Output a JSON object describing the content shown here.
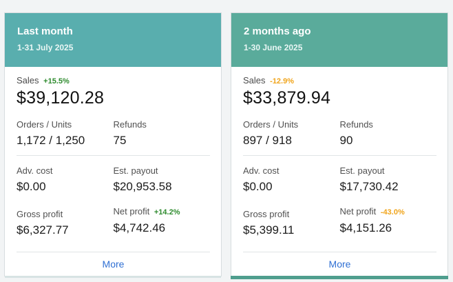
{
  "cards": [
    {
      "title": "Last month",
      "date_range": "1-31 July 2025",
      "sales_label": "Sales",
      "sales_change": "+15.5%",
      "sales_value": "$39,120.28",
      "orders_label": "Orders / Units",
      "orders_value": "1,172 / 1,250",
      "refunds_label": "Refunds",
      "refunds_value": "75",
      "adv_label": "Adv. cost",
      "adv_value": "$0.00",
      "payout_label": "Est. payout",
      "payout_value": "$20,953.58",
      "gross_label": "Gross profit",
      "gross_value": "$6,327.77",
      "net_label": "Net profit",
      "net_change": "+14.2%",
      "net_value": "$4,742.46",
      "more_label": "More"
    },
    {
      "title": "2 months ago",
      "date_range": "1-30 June 2025",
      "sales_label": "Sales",
      "sales_change": "-12.9%",
      "sales_value": "$33,879.94",
      "orders_label": "Orders / Units",
      "orders_value": "897 / 918",
      "refunds_label": "Refunds",
      "refunds_value": "90",
      "adv_label": "Adv. cost",
      "adv_value": "$0.00",
      "payout_label": "Est. payout",
      "payout_value": "$17,730.42",
      "gross_label": "Gross profit",
      "gross_value": "$5,399.11",
      "net_label": "Net profit",
      "net_change": "-43.0%",
      "net_value": "$4,151.26",
      "more_label": "More"
    }
  ],
  "colors": {
    "card1_header": "#59aeae",
    "card2_header": "#5aab9b",
    "positive": "#2e8b2e",
    "negative": "#f0a41a",
    "link": "#2f6fd3"
  }
}
